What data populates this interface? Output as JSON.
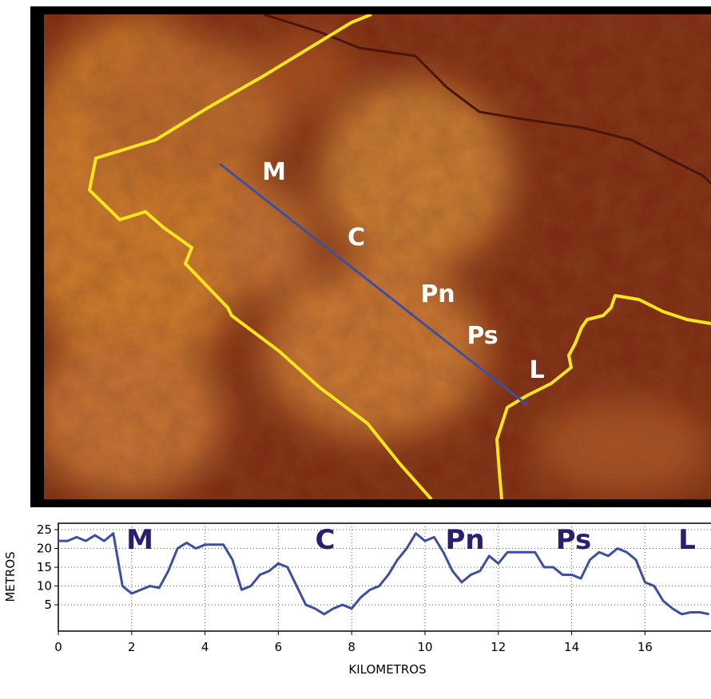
{
  "map": {
    "labels": [
      "M",
      "C",
      "Pn",
      "Ps",
      "L"
    ]
  },
  "chart_data": {
    "type": "line",
    "profile_labels": [
      "M",
      "C",
      "Pn",
      "Ps",
      "L"
    ],
    "xlabel": "KILOMETROS",
    "ylabel": "METROS",
    "x": [
      0,
      0.25,
      0.5,
      0.75,
      1,
      1.25,
      1.5,
      1.75,
      2,
      2.25,
      2.5,
      2.75,
      3,
      3.25,
      3.5,
      3.75,
      4,
      4.25,
      4.5,
      4.75,
      5,
      5.25,
      5.5,
      5.75,
      6,
      6.25,
      6.5,
      6.75,
      7,
      7.25,
      7.5,
      7.75,
      8,
      8.25,
      8.5,
      8.75,
      9,
      9.25,
      9.5,
      9.75,
      10,
      10.25,
      10.5,
      10.75,
      11,
      11.25,
      11.5,
      11.75,
      12,
      12.25,
      12.5,
      12.75,
      13,
      13.25,
      13.5,
      13.75,
      14,
      14.25,
      14.5,
      14.75,
      15,
      15.25,
      15.5,
      15.75,
      16,
      16.25,
      16.5,
      16.75,
      17,
      17.25,
      17.5,
      17.75
    ],
    "values": [
      22,
      22,
      23,
      22,
      23.5,
      22,
      24,
      10,
      8,
      9,
      10,
      9.5,
      14,
      20,
      21.5,
      20,
      21,
      21,
      21,
      17,
      9,
      10,
      13,
      14,
      16,
      15,
      10,
      5,
      4,
      2.5,
      4,
      5,
      4,
      7,
      9,
      10,
      13,
      17,
      20,
      24,
      22,
      23,
      19,
      14,
      11,
      13,
      14,
      18,
      16,
      19,
      19,
      19,
      19,
      15,
      15,
      13,
      13,
      12,
      17,
      19,
      18,
      20,
      19,
      17,
      11,
      10,
      6,
      4,
      2.5,
      3,
      3,
      2.5
    ],
    "color": "#3f4fa0",
    "xlim": [
      0,
      17.8
    ],
    "ylim": [
      -2,
      26.7
    ],
    "xticks": [
      0,
      2,
      4,
      6,
      8,
      10,
      12,
      14,
      16
    ],
    "yticks": [
      5,
      10,
      15,
      20,
      25
    ],
    "grid": true
  }
}
